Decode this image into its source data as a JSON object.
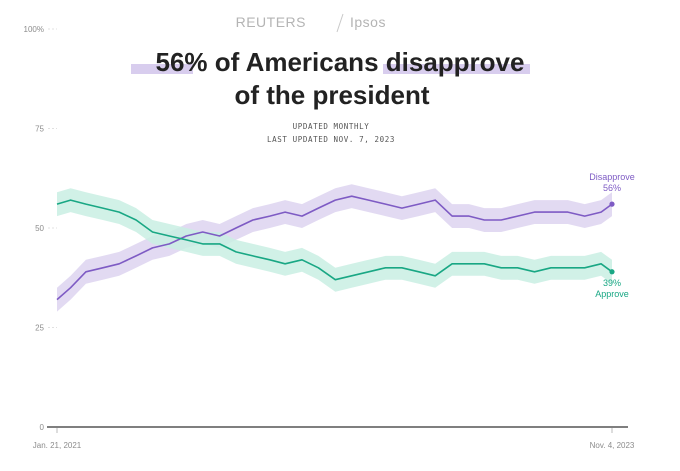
{
  "header": {
    "brand_left": "REUTERS",
    "brand_right": "Ipsos",
    "title_line1_highlight1": "56%",
    "title_line1_mid": " of Americans ",
    "title_line1_highlight2": "disapprove",
    "title_line2": "of the president",
    "subtitle_line1": "UPDATED MONTHLY",
    "subtitle_line2": "LAST UPDATED NOV. 7, 2023"
  },
  "colors": {
    "disapprove": "#7e5bc4",
    "disapprove_band": "#ddd3f0",
    "approve": "#19a784",
    "approve_band": "#c9eee3",
    "highlight": "#d8cdee"
  },
  "chart_data": {
    "type": "line",
    "title": "56% of Americans disapprove of the president",
    "xlabel": "",
    "ylabel": "",
    "ylim": [
      0,
      100
    ],
    "y_ticks": [
      "0",
      "25",
      "50",
      "75",
      "100%"
    ],
    "y_tick_values": [
      0,
      25,
      50,
      75,
      100
    ],
    "x_tick_labels": [
      "Jan. 21, 2021",
      "Nov. 4, 2023"
    ],
    "x_range": [
      "2021-01-21",
      "2023-11-04"
    ],
    "grid": true,
    "series": [
      {
        "name": "Disapprove",
        "end_label": "56%",
        "x": [
          "2021-01-21",
          "2021-02-15",
          "2021-03-15",
          "2021-04-15",
          "2021-05-15",
          "2021-06-15",
          "2021-07-15",
          "2021-08-15",
          "2021-09-15",
          "2021-10-15",
          "2021-11-15",
          "2021-12-15",
          "2022-01-15",
          "2022-02-15",
          "2022-03-15",
          "2022-04-15",
          "2022-05-15",
          "2022-06-15",
          "2022-07-15",
          "2022-08-15",
          "2022-09-15",
          "2022-10-15",
          "2022-11-15",
          "2022-12-15",
          "2023-01-15",
          "2023-02-15",
          "2023-03-15",
          "2023-04-15",
          "2023-05-15",
          "2023-06-15",
          "2023-07-15",
          "2023-08-15",
          "2023-09-15",
          "2023-10-15",
          "2023-11-04"
        ],
        "values": [
          32,
          35,
          39,
          40,
          41,
          43,
          45,
          46,
          48,
          49,
          48,
          50,
          52,
          53,
          54,
          53,
          55,
          57,
          58,
          57,
          56,
          55,
          56,
          57,
          53,
          53,
          52,
          52,
          53,
          54,
          54,
          54,
          53,
          54,
          56
        ],
        "band_half_width": 3
      },
      {
        "name": "Approve",
        "end_label": "39%",
        "x": [
          "2021-01-21",
          "2021-02-15",
          "2021-03-15",
          "2021-04-15",
          "2021-05-15",
          "2021-06-15",
          "2021-07-15",
          "2021-08-15",
          "2021-09-15",
          "2021-10-15",
          "2021-11-15",
          "2021-12-15",
          "2022-01-15",
          "2022-02-15",
          "2022-03-15",
          "2022-04-15",
          "2022-05-15",
          "2022-06-15",
          "2022-07-15",
          "2022-08-15",
          "2022-09-15",
          "2022-10-15",
          "2022-11-15",
          "2022-12-15",
          "2023-01-15",
          "2023-02-15",
          "2023-03-15",
          "2023-04-15",
          "2023-05-15",
          "2023-06-15",
          "2023-07-15",
          "2023-08-15",
          "2023-09-15",
          "2023-10-15",
          "2023-11-04"
        ],
        "values": [
          56,
          57,
          56,
          55,
          54,
          52,
          49,
          48,
          47,
          46,
          46,
          44,
          43,
          42,
          41,
          42,
          40,
          37,
          38,
          39,
          40,
          40,
          39,
          38,
          41,
          41,
          41,
          40,
          40,
          39,
          40,
          40,
          40,
          41,
          39
        ],
        "band_half_width": 3
      }
    ]
  }
}
